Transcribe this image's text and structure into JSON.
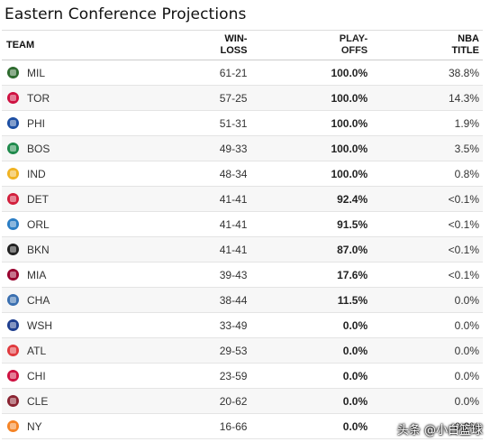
{
  "title": "Eastern Conference Projections",
  "columns": {
    "team": "TEAM",
    "win_loss": [
      "WIN-",
      "LOSS"
    ],
    "playoffs": [
      "PLAY-",
      "OFFS"
    ],
    "nba_title": [
      "NBA",
      "TITLE"
    ]
  },
  "rows": [
    {
      "team": "MIL",
      "record": "61-21",
      "playoffs": "100.0%",
      "title": "38.8%",
      "icon": "bucks-logo-icon",
      "color": "#2e6b2f"
    },
    {
      "team": "TOR",
      "record": "57-25",
      "playoffs": "100.0%",
      "title": "14.3%",
      "icon": "raptors-logo-icon",
      "color": "#ce1141"
    },
    {
      "team": "PHI",
      "record": "51-31",
      "playoffs": "100.0%",
      "title": "1.9%",
      "icon": "76ers-logo-icon",
      "color": "#1d4fa3"
    },
    {
      "team": "BOS",
      "record": "49-33",
      "playoffs": "100.0%",
      "title": "3.5%",
      "icon": "celtics-logo-icon",
      "color": "#1f8a4c"
    },
    {
      "team": "IND",
      "record": "48-34",
      "playoffs": "100.0%",
      "title": "0.8%",
      "icon": "pacers-logo-icon",
      "color": "#f0b323"
    },
    {
      "team": "DET",
      "record": "41-41",
      "playoffs": "92.4%",
      "title": "<0.1%",
      "icon": "pistons-logo-icon",
      "color": "#d21f3c"
    },
    {
      "team": "ORL",
      "record": "41-41",
      "playoffs": "91.5%",
      "title": "<0.1%",
      "icon": "magic-logo-icon",
      "color": "#2a7dc4"
    },
    {
      "team": "BKN",
      "record": "41-41",
      "playoffs": "87.0%",
      "title": "<0.1%",
      "icon": "nets-logo-icon",
      "color": "#222222"
    },
    {
      "team": "MIA",
      "record": "39-43",
      "playoffs": "17.6%",
      "title": "<0.1%",
      "icon": "heat-logo-icon",
      "color": "#98002e"
    },
    {
      "team": "CHA",
      "record": "38-44",
      "playoffs": "11.5%",
      "title": "0.0%",
      "icon": "hornets-logo-icon",
      "color": "#3a6fb0"
    },
    {
      "team": "WSH",
      "record": "33-49",
      "playoffs": "0.0%",
      "title": "0.0%",
      "icon": "wizards-logo-icon",
      "color": "#1f3f8f"
    },
    {
      "team": "ATL",
      "record": "29-53",
      "playoffs": "0.0%",
      "title": "0.0%",
      "icon": "hawks-logo-icon",
      "color": "#e03a3e"
    },
    {
      "team": "CHI",
      "record": "23-59",
      "playoffs": "0.0%",
      "title": "0.0%",
      "icon": "bulls-logo-icon",
      "color": "#ce1141"
    },
    {
      "team": "CLE",
      "record": "20-62",
      "playoffs": "0.0%",
      "title": "0.0%",
      "icon": "cavaliers-logo-icon",
      "color": "#8a2432"
    },
    {
      "team": "NY",
      "record": "16-66",
      "playoffs": "0.0%",
      "title": "0.0%",
      "icon": "knicks-logo-icon",
      "color": "#f58426"
    }
  ],
  "watermark": "头条 @小白篮球"
}
